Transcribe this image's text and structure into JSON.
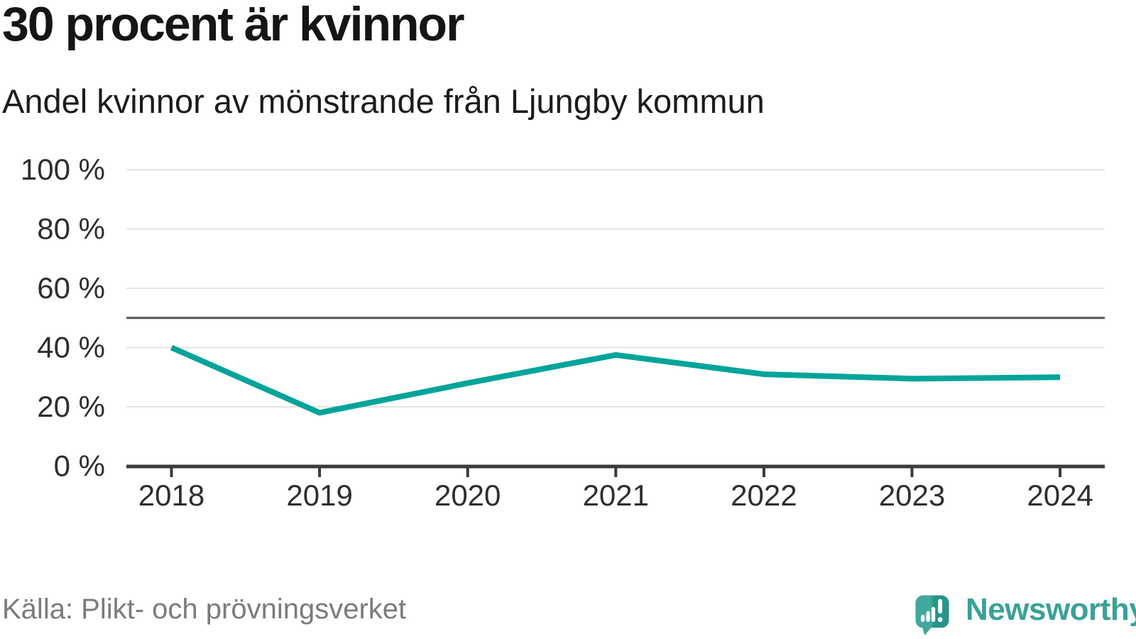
{
  "header": {
    "title": "30 procent är kvinnor",
    "subtitle": "Andel kvinnor av mönstrande från Ljungby kommun"
  },
  "chart_data": {
    "type": "line",
    "title": "30 procent är kvinnor",
    "subtitle": "Andel kvinnor av mönstrande från Ljungby kommun",
    "x": [
      "2018",
      "2019",
      "2020",
      "2021",
      "2022",
      "2023",
      "2024"
    ],
    "series": [
      {
        "name": "Andel kvinnor av mönstrande",
        "values": [
          40,
          18,
          28,
          37.5,
          31,
          29.5,
          30
        ]
      }
    ],
    "unit": "%",
    "ylim": [
      0,
      100
    ],
    "yticks": [
      0,
      20,
      40,
      60,
      80,
      100
    ],
    "ytick_suffix": " %",
    "reference_line": 50,
    "grid": true,
    "legend": "none",
    "line_color": "#00a49a",
    "reference_line_color": "#55565a",
    "grid_color": "#e4e4e4",
    "axis_color": "#3a3a3a"
  },
  "footer": {
    "source": "Källa: Plikt- och prövningsverket",
    "logo_text": "Newsworthy",
    "logo_text_color": "#3aa196",
    "logo_icon_colors": [
      "#41a89b",
      "#28948a"
    ]
  }
}
